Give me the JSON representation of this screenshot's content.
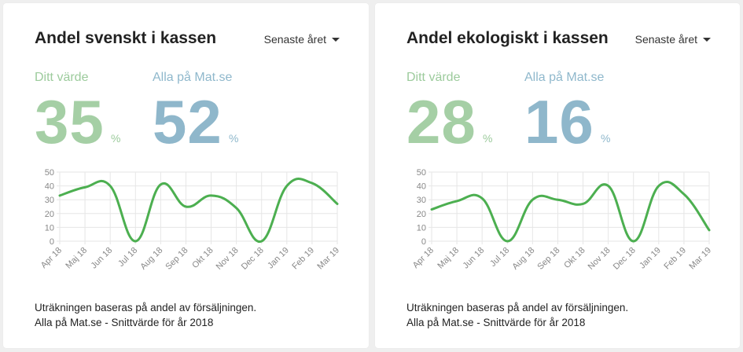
{
  "colors": {
    "line": "#4caf50",
    "mine": "#9ccb9c",
    "all": "#8fb8cc",
    "grid": "#e6e6e6",
    "tick": "#888888"
  },
  "cards": [
    {
      "title": "Andel svenskt i kassen",
      "period": "Senaste året",
      "mine_label": "Ditt värde",
      "mine_value": "35",
      "all_label": "Alla på Mat.se",
      "all_value": "52",
      "unit": "%",
      "foot_1": "Uträkningen baseras på andel av försäljningen.",
      "foot_2": "Alla på Mat.se - Snittvärde för år 2018"
    },
    {
      "title": "Andel ekologiskt i kassen",
      "period": "Senaste året",
      "mine_label": "Ditt värde",
      "mine_value": "28",
      "all_label": "Alla på Mat.se",
      "all_value": "16",
      "unit": "%",
      "foot_1": "Uträkningen baseras på andel av försäljningen.",
      "foot_2": "Alla på Mat.se - Snittvärde för år 2018"
    }
  ],
  "chart_data": [
    {
      "type": "line",
      "categories": [
        "Apr 18",
        "Maj 18",
        "Jun 18",
        "Jul 18",
        "Aug 18",
        "Sep 18",
        "Okt 18",
        "Nov 18",
        "Dec 18",
        "Jan 19",
        "Feb 19",
        "Mar 19"
      ],
      "series": [
        {
          "values": [
            33,
            39,
            40,
            0,
            41,
            25,
            33,
            24,
            0,
            40,
            42,
            27
          ]
        }
      ],
      "yticks": [
        0,
        10,
        20,
        30,
        40,
        50
      ],
      "ylim": [
        0,
        50
      ],
      "grid": true,
      "title": "",
      "xlabel": "",
      "ylabel": ""
    },
    {
      "type": "line",
      "categories": [
        "Apr 18",
        "Maj 18",
        "Jun 18",
        "Jul 18",
        "Aug 18",
        "Sep 18",
        "Okt 18",
        "Nov 18",
        "Dec 18",
        "Jan 19",
        "Feb 19",
        "Mar 19"
      ],
      "series": [
        {
          "values": [
            23,
            29,
            31,
            0,
            30,
            30,
            27,
            40,
            0,
            40,
            34,
            8
          ]
        }
      ],
      "yticks": [
        0,
        10,
        20,
        30,
        40,
        50
      ],
      "ylim": [
        0,
        50
      ],
      "grid": true,
      "title": "",
      "xlabel": "",
      "ylabel": ""
    }
  ]
}
